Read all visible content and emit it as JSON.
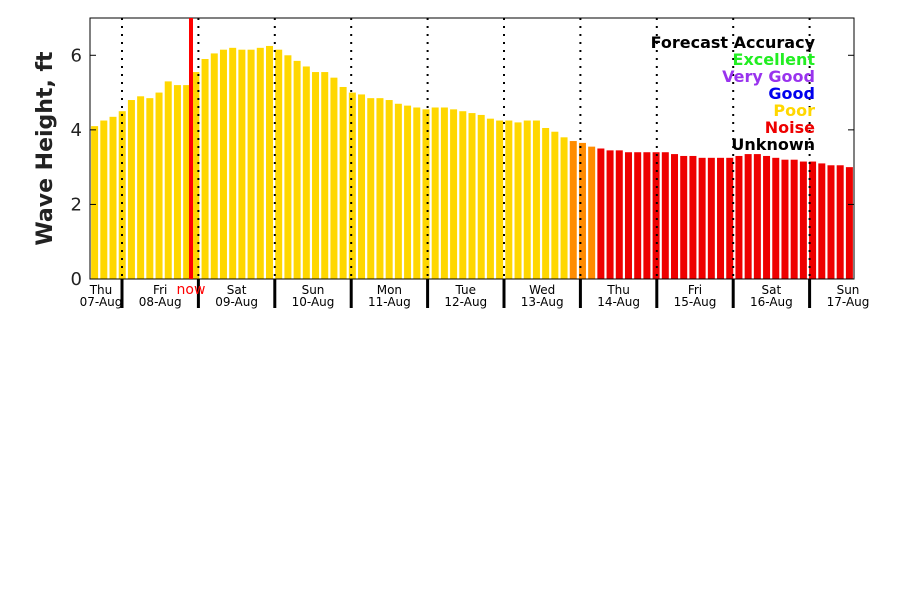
{
  "chart_data": {
    "type": "bar",
    "ylabel": "Wave Height, ft",
    "ylim": [
      0,
      7
    ],
    "yticks": [
      0,
      2,
      4,
      6
    ],
    "xlabel": "",
    "days": [
      {
        "weekday": "Thu",
        "date": "07-Aug"
      },
      {
        "weekday": "Fri",
        "date": "08-Aug"
      },
      {
        "weekday": "Sat",
        "date": "09-Aug"
      },
      {
        "weekday": "Sun",
        "date": "10-Aug"
      },
      {
        "weekday": "Mon",
        "date": "11-Aug"
      },
      {
        "weekday": "Tue",
        "date": "12-Aug"
      },
      {
        "weekday": "Wed",
        "date": "13-Aug"
      },
      {
        "weekday": "Thu",
        "date": "14-Aug"
      },
      {
        "weekday": "Fri",
        "date": "15-Aug"
      },
      {
        "weekday": "Sat",
        "date": "16-Aug"
      },
      {
        "weekday": "Sun",
        "date": "17-Aug"
      }
    ],
    "now_label": "now",
    "legend": {
      "title": "Forecast Accuracy",
      "placement": "top-right",
      "items": [
        {
          "label": "Excellent",
          "color": "#22ee22"
        },
        {
          "label": "Very Good",
          "color": "#9933ee"
        },
        {
          "label": "Good",
          "color": "#0000ee"
        },
        {
          "label": "Poor",
          "color": "#ffd700"
        },
        {
          "label": "Noise",
          "color": "#ee0000"
        },
        {
          "label": "Unknown",
          "color": "#000000"
        }
      ]
    },
    "colors": {
      "poor": "#ffd700",
      "transition": "#ff8c00",
      "noise": "#ee0000",
      "now_line": "#ff0000"
    },
    "series": [
      {
        "accuracy": "Poor",
        "values": [
          4.1,
          4.25,
          4.35,
          4.5,
          4.8,
          4.9,
          4.85,
          5.0,
          5.3,
          5.2,
          5.2,
          5.55,
          5.9,
          6.05,
          6.15,
          6.2,
          6.15,
          6.15,
          6.2,
          6.25,
          6.15,
          6.0,
          5.85,
          5.7,
          5.55,
          5.55,
          5.4,
          5.15,
          5.0,
          4.95,
          4.85,
          4.85,
          4.8,
          4.7,
          4.65,
          4.6,
          4.55,
          4.6,
          4.6,
          4.55,
          4.5,
          4.45,
          4.4,
          4.3,
          4.25,
          4.25,
          4.2,
          4.25,
          4.25,
          4.05,
          3.95,
          3.8
        ]
      },
      {
        "accuracy": "Transition",
        "values": [
          3.7,
          3.65,
          3.55
        ]
      },
      {
        "accuracy": "Noise",
        "values": [
          3.5,
          3.45,
          3.45,
          3.4,
          3.4,
          3.4,
          3.4,
          3.4,
          3.35,
          3.3,
          3.3,
          3.25,
          3.25,
          3.25,
          3.25,
          3.3,
          3.35,
          3.35,
          3.3,
          3.25,
          3.2,
          3.2,
          3.15,
          3.15,
          3.1,
          3.05,
          3.05,
          3.0
        ]
      }
    ]
  }
}
